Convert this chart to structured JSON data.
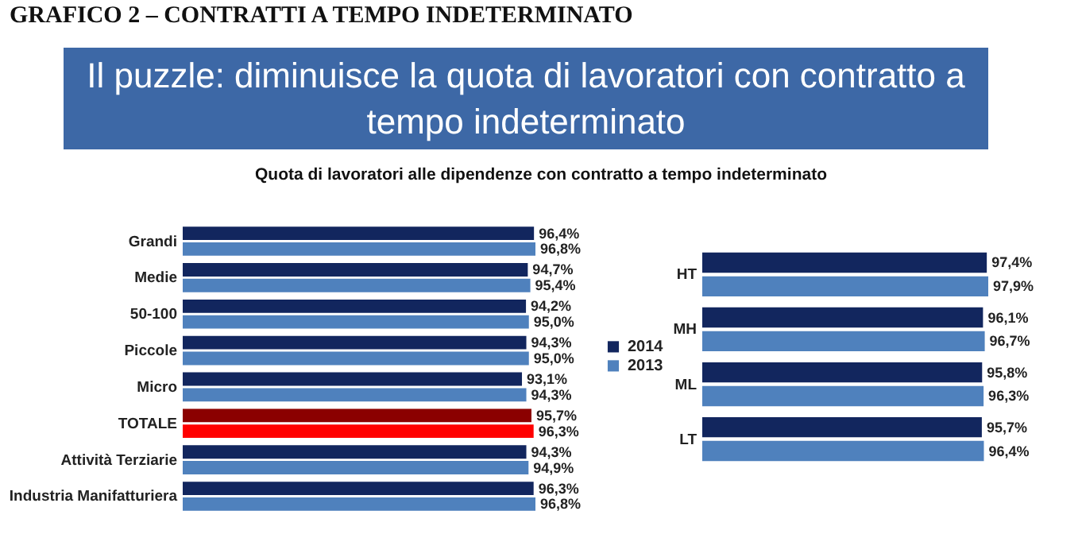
{
  "chart_data": [
    {
      "type": "bar",
      "orientation": "horizontal",
      "title": "GRAFICO 2 – CONTRATTI A TEMPO INDETERMINATO",
      "subtitle": "Il puzzle: diminuisce la quota di lavoratori con contratto a tempo indeterminato",
      "annotations": [
        "Quota di lavoratori alle dipendenze con contratto a tempo indeterminato"
      ],
      "categories": [
        "Grandi",
        "Medie",
        "50-100",
        "Piccole",
        "Micro",
        "TOTALE",
        "Attività Terziarie",
        "Industria Manifatturiera"
      ],
      "tick_labels": "y",
      "legend": "right",
      "series": [
        {
          "name": "2014",
          "color": "#12265e",
          "colors": [
            "#12265e",
            "#12265e",
            "#12265e",
            "#12265e",
            "#12265e",
            "#8b0000",
            "#12265e",
            "#12265e"
          ],
          "values": [
            96.4,
            94.7,
            94.2,
            94.3,
            93.1,
            95.7,
            94.3,
            96.3
          ],
          "value_labels": [
            "96,4%",
            "94,7%",
            "94,2%",
            "94,3%",
            "93,1%",
            "95,7%",
            "94,3%",
            "96,3%"
          ]
        },
        {
          "name": "2013",
          "color": "#4f81bd",
          "colors": [
            "#4f81bd",
            "#4f81bd",
            "#4f81bd",
            "#4f81bd",
            "#4f81bd",
            "#ff0000",
            "#4f81bd",
            "#4f81bd"
          ],
          "values": [
            96.8,
            95.4,
            95.0,
            95.0,
            94.3,
            96.3,
            94.9,
            96.8
          ],
          "value_labels": [
            "96,8%",
            "95,4%",
            "95,0%",
            "95,0%",
            "94,3%",
            "96,3%",
            "94,9%",
            "96,8%"
          ]
        }
      ]
    },
    {
      "type": "bar",
      "orientation": "horizontal",
      "categories": [
        "HT",
        "MH",
        "ML",
        "LT"
      ],
      "tick_labels": "y",
      "series": [
        {
          "name": "2014",
          "color": "#12265e",
          "values": [
            97.4,
            96.1,
            95.8,
            95.7
          ],
          "value_labels": [
            "97,4%",
            "96,1%",
            "95,8%",
            "95,7%"
          ]
        },
        {
          "name": "2013",
          "color": "#4f81bd",
          "values": [
            97.9,
            96.7,
            96.3,
            96.4
          ],
          "value_labels": [
            "97,9%",
            "96,7%",
            "96,3%",
            "96,4%"
          ]
        }
      ]
    }
  ]
}
